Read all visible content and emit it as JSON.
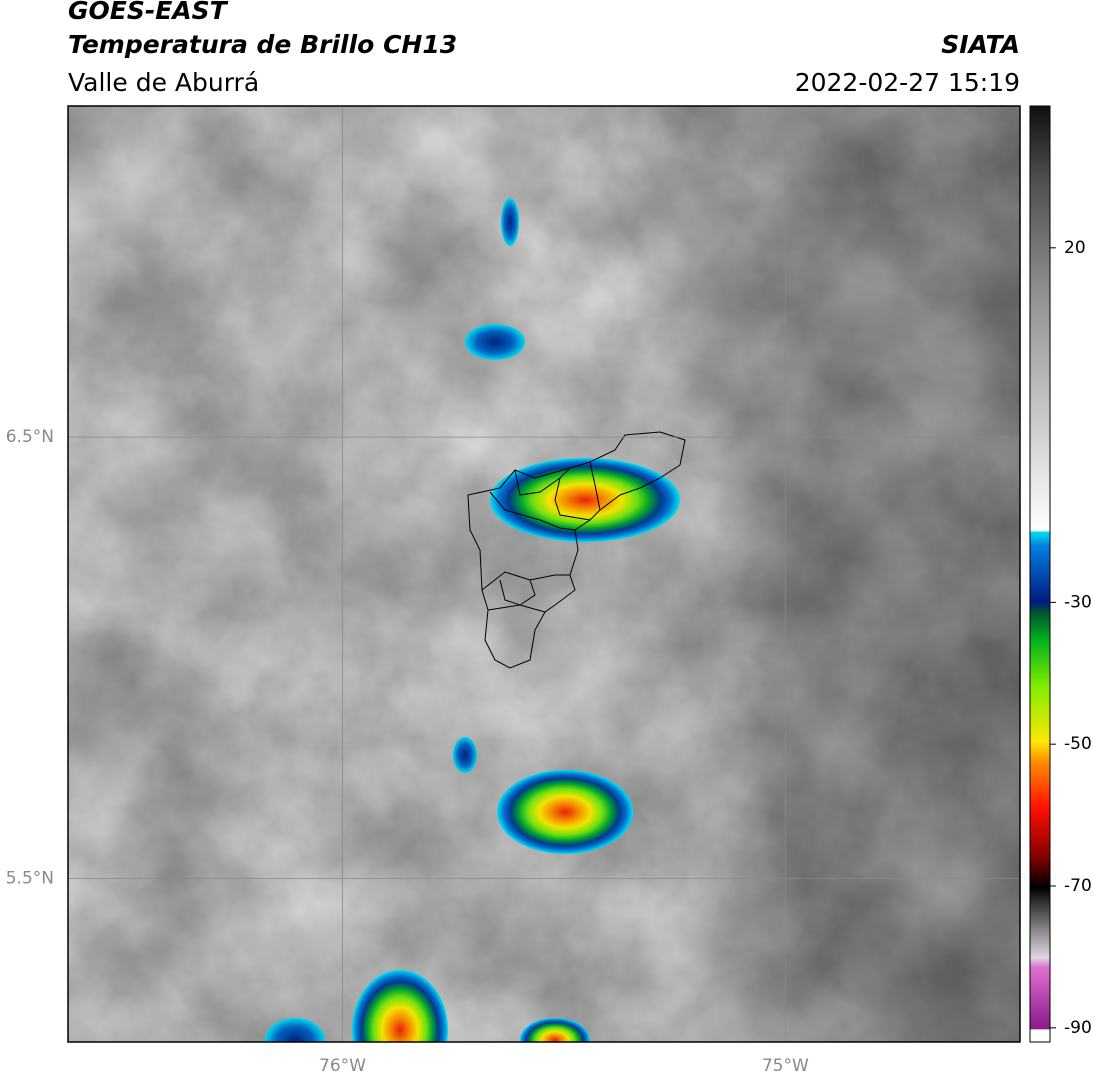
{
  "header": {
    "satellite": "GOES-EAST",
    "product": "Temperatura de Brillo CH13",
    "region": "Valle de Aburrá",
    "organization": "SIATA",
    "datetime": "2022-02-27 15:19"
  },
  "map": {
    "xlim": [
      -76.62,
      -74.47
    ],
    "ylim": [
      5.13,
      7.25
    ],
    "xticks": [
      {
        "value": -76,
        "label": "76°W"
      },
      {
        "value": -75,
        "label": "75°W"
      }
    ],
    "yticks": [
      {
        "value": 6.5,
        "label": "6.5°N"
      },
      {
        "value": 5.5,
        "label": "5.5°N"
      }
    ],
    "grid": true
  },
  "colorbar": {
    "lim": [
      -92,
      40
    ],
    "ticks": [
      20,
      -30,
      -50,
      -70,
      -90
    ]
  }
}
